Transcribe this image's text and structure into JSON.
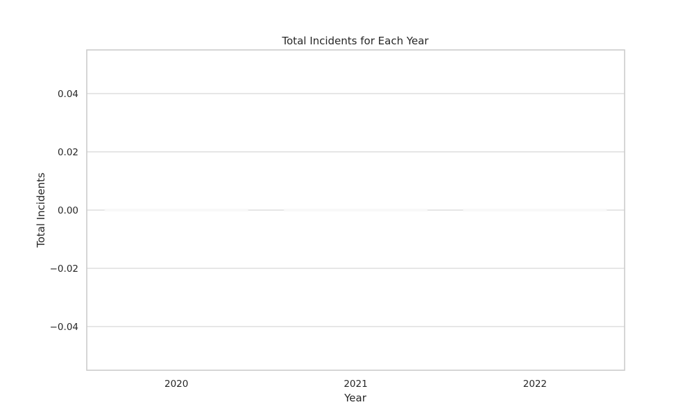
{
  "chart_data": {
    "type": "bar",
    "title": "Total Incidents for Each Year",
    "xlabel": "Year",
    "ylabel": "Total Incidents",
    "categories": [
      "2020",
      "2021",
      "2022"
    ],
    "values": [
      0,
      0,
      0
    ],
    "ylim": [
      -0.055,
      0.055
    ],
    "yticks": [
      -0.04,
      -0.02,
      0.0,
      0.02,
      0.04
    ],
    "ytick_labels": [
      "−0.04",
      "−0.02",
      "0.00",
      "0.02",
      "0.04"
    ],
    "grid": "horizontal",
    "legend": "none",
    "colors": {
      "grid": "#cccccc",
      "frame": "#cccccc",
      "text": "#262626",
      "bar": "#ffffff"
    }
  }
}
